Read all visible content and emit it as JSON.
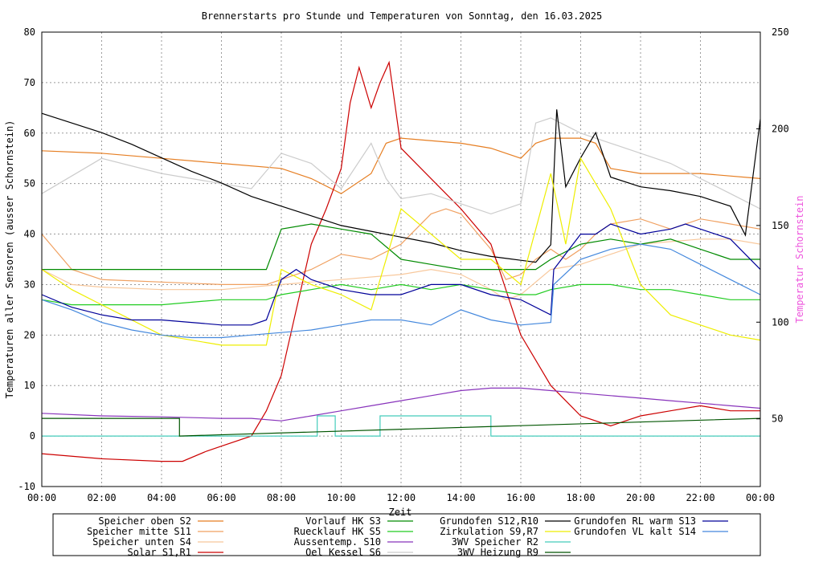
{
  "chart_data": {
    "type": "line",
    "title": "Brennerstarts pro Stunde und Temperaturen von Sonntag, den 16.03.2025",
    "xlabel": "Zeit",
    "ylabel": "Temperaturen aller Sensoren (ausser Schornstein)",
    "y2label": "Temperatur Schornstein",
    "ylim": [
      -10,
      80
    ],
    "y2lim": [
      15,
      250
    ],
    "xlim": [
      0,
      24
    ],
    "grid": true,
    "x_ticks": [
      "00:00",
      "02:00",
      "04:00",
      "06:00",
      "08:00",
      "10:00",
      "12:00",
      "14:00",
      "16:00",
      "18:00",
      "20:00",
      "22:00",
      "00:00"
    ],
    "y_ticks": [
      "-10",
      "0",
      "10",
      "20",
      "30",
      "40",
      "50",
      "60",
      "70",
      "80"
    ],
    "y2_ticks": [
      "50",
      "100",
      "150",
      "200",
      "250"
    ],
    "legend_position": "bottom",
    "legend": [
      {
        "name": "Speicher oben  S2",
        "color": "#e67e22"
      },
      {
        "name": "Speicher mitte S11",
        "color": "#f0a060"
      },
      {
        "name": "Speicher unten S4",
        "color": "#f8c89c"
      },
      {
        "name": "Solar       S1,R1",
        "color": "#cc0000"
      },
      {
        "name": "Vorlauf HK     S3",
        "color": "#008a00"
      },
      {
        "name": "Ruecklauf HK   S5",
        "color": "#22cc22"
      },
      {
        "name": "Aussentemp.   S10",
        "color": "#8833bb"
      },
      {
        "name": "Oel Kessel     S6",
        "color": "#cccccc"
      },
      {
        "name": "Grundofen   S12,R10",
        "color": "#000000"
      },
      {
        "name": "Zirkulation  S9,R7",
        "color": "#eeee00"
      },
      {
        "name": "3WV Speicher    R2",
        "color": "#44ccbb"
      },
      {
        "name": "3WV Heizung   R9",
        "color": "#005500"
      },
      {
        "name": "Grundofen RL warm  S13",
        "color": "#000099"
      },
      {
        "name": "Grundofen VL kalt  S14",
        "color": "#4488dd"
      }
    ],
    "series": [
      {
        "name": "Speicher oben  S2",
        "axis": "y",
        "x": [
          0,
          2,
          4,
          6,
          8,
          9,
          10,
          11,
          11.5,
          12,
          14,
          15,
          16,
          16.5,
          17,
          18,
          18.5,
          19,
          20,
          22,
          24
        ],
        "values": [
          56.5,
          56,
          55,
          54,
          53,
          51,
          48,
          52,
          58,
          59,
          58,
          57,
          55,
          58,
          59,
          59,
          58,
          53,
          52,
          52,
          51
        ]
      },
      {
        "name": "Speicher mitte S11",
        "axis": "y",
        "x": [
          0,
          1,
          2,
          4,
          6,
          7.5,
          8,
          9,
          10,
          11,
          12,
          13,
          13.5,
          14,
          15,
          15.5,
          16,
          16.5,
          17,
          17.5,
          18,
          18.5,
          19,
          20,
          21,
          22,
          23,
          24
        ],
        "values": [
          40,
          33,
          31,
          30.5,
          30,
          30,
          31,
          33,
          36,
          35,
          38,
          44,
          45,
          44,
          37,
          31,
          32,
          35,
          37,
          35,
          37,
          40,
          42,
          43,
          41,
          43,
          42,
          41
        ]
      },
      {
        "name": "Speicher unten S4",
        "axis": "y",
        "x": [
          0,
          1,
          2,
          4,
          6,
          8,
          10,
          12,
          13,
          14,
          15,
          15.5,
          16,
          17,
          18,
          19,
          20,
          22,
          23,
          24
        ],
        "values": [
          33,
          30,
          29.5,
          29,
          29,
          30,
          31,
          32,
          33,
          32,
          29,
          27,
          28,
          33,
          34,
          36,
          38,
          39,
          39,
          38
        ]
      },
      {
        "name": "Solar       S1,R1",
        "axis": "y",
        "x": [
          0,
          2,
          4,
          4.7,
          5.5,
          6,
          7,
          7.5,
          8,
          8.5,
          9,
          9.5,
          10,
          10.3,
          10.6,
          11,
          11.3,
          11.6,
          12,
          13,
          14,
          15,
          16,
          17,
          18,
          19,
          19.5,
          20,
          21,
          22,
          23,
          24
        ],
        "values": [
          -3.5,
          -4.5,
          -5,
          -5,
          -3,
          -2,
          0,
          5,
          12,
          25,
          38,
          45,
          53,
          66,
          73,
          65,
          70,
          74,
          57,
          51,
          45,
          38,
          20,
          10,
          4,
          2,
          3,
          4,
          5,
          6,
          5,
          5
        ]
      },
      {
        "name": "Vorlauf HK     S3",
        "axis": "y",
        "x": [
          0,
          1,
          2,
          3,
          4,
          5,
          6,
          7,
          7.5,
          8,
          9,
          10,
          11,
          12,
          13,
          14,
          15,
          16,
          16.5,
          17,
          18,
          19,
          20,
          21,
          22,
          23,
          24
        ],
        "values": [
          33,
          33,
          33,
          33,
          33,
          33,
          33,
          33,
          33,
          41,
          42,
          41,
          40,
          35,
          34,
          33,
          33,
          33,
          33,
          35,
          38,
          39,
          38,
          39,
          37,
          35,
          35
        ]
      },
      {
        "name": "Ruecklauf HK   S5",
        "axis": "y",
        "x": [
          0,
          1,
          2,
          4,
          6,
          7.5,
          8,
          9,
          10,
          11,
          12,
          13,
          14,
          15,
          16,
          16.5,
          17,
          18,
          19,
          20,
          21,
          22,
          23,
          24
        ],
        "values": [
          27,
          26,
          26,
          26,
          27,
          27,
          28,
          29,
          30,
          29,
          30,
          29,
          30,
          29,
          28,
          28,
          29,
          30,
          30,
          29,
          29,
          28,
          27,
          27
        ]
      },
      {
        "name": "Aussentemp.   S10",
        "axis": "y",
        "x": [
          0,
          2,
          4,
          6,
          7,
          8,
          9,
          10,
          11,
          12,
          13,
          14,
          15,
          16,
          17,
          18,
          19,
          20,
          21,
          22,
          23,
          24
        ],
        "values": [
          4.5,
          4,
          3.8,
          3.5,
          3.5,
          3,
          4,
          5,
          6,
          7,
          8,
          9,
          9.5,
          9.5,
          9,
          8.5,
          8,
          7.5,
          7,
          6.5,
          6,
          5.5
        ]
      },
      {
        "name": "Oel Kessel     S6",
        "axis": "y",
        "x": [
          0,
          2,
          4,
          6,
          7,
          8,
          9,
          10,
          11,
          11.5,
          12,
          13,
          14,
          15,
          16,
          16.5,
          17,
          18,
          19,
          20,
          21,
          22,
          23,
          24
        ],
        "values": [
          48,
          55,
          52,
          50,
          49,
          56,
          54,
          49,
          58,
          51,
          47,
          48,
          46,
          44,
          46,
          62,
          63,
          60,
          58,
          56,
          54,
          51,
          48,
          45
        ]
      },
      {
        "name": "Grundofen   S12,R10",
        "axis": "y2",
        "x": [
          0,
          1,
          2,
          3,
          4,
          5,
          6,
          7,
          8,
          9,
          10,
          11,
          12,
          13,
          14,
          15,
          16,
          16.5,
          17,
          17.2,
          17.5,
          18,
          18.5,
          19,
          20,
          21,
          22,
          23,
          23.5,
          24
        ],
        "values": [
          208,
          203,
          198,
          192,
          185,
          178,
          172,
          165,
          160,
          155,
          150,
          147,
          144,
          141,
          137,
          134,
          132,
          131,
          140,
          210,
          170,
          185,
          198,
          175,
          170,
          168,
          165,
          160,
          145,
          205
        ]
      },
      {
        "name": "Zirkulation  S9,R7",
        "axis": "y",
        "x": [
          0,
          1,
          2,
          4,
          6,
          7.5,
          8,
          9,
          10,
          11,
          12,
          13,
          14,
          15,
          16,
          17,
          17.5,
          18,
          19,
          20,
          21,
          22,
          23,
          24
        ],
        "values": [
          33,
          29,
          26,
          20,
          18,
          18,
          33,
          30,
          28,
          25,
          45,
          40,
          35,
          35,
          30,
          52,
          38,
          55,
          45,
          30,
          24,
          22,
          20,
          19
        ]
      },
      {
        "name": "3WV Speicher    R2",
        "axis": "y",
        "x": [
          0,
          9.2,
          9.2,
          9.8,
          9.8,
          11.3,
          11.3,
          15,
          15,
          24
        ],
        "values": [
          0,
          0,
          4,
          4,
          0,
          0,
          4,
          4,
          0,
          0
        ]
      },
      {
        "name": "3WV Heizung   R9",
        "axis": "y",
        "x": [
          0,
          4.6,
          4.6,
          24
        ],
        "values": [
          3.5,
          3.5,
          0,
          3.5
        ]
      },
      {
        "name": "Grundofen RL warm  S13",
        "axis": "y",
        "x": [
          0,
          1,
          2,
          3,
          4,
          5,
          6,
          7,
          7.5,
          8,
          8.5,
          9,
          10,
          11,
          12,
          13,
          14,
          15,
          16,
          17,
          17.1,
          18,
          18.5,
          19,
          20,
          21,
          21.5,
          22,
          23,
          24
        ],
        "values": [
          28,
          25.5,
          24,
          23,
          23,
          22.5,
          22,
          22,
          23,
          31,
          33,
          31,
          29,
          28,
          28,
          30,
          30,
          28,
          27,
          24,
          33,
          40,
          40,
          42,
          40,
          41,
          42,
          41,
          39,
          33
        ]
      },
      {
        "name": "Grundofen VL kalt  S14",
        "axis": "y",
        "x": [
          0,
          1,
          2,
          3,
          4,
          5,
          6,
          7,
          8,
          9,
          10,
          11,
          12,
          13,
          14,
          15,
          16,
          17,
          17.1,
          18,
          19,
          20,
          21,
          22,
          23,
          24
        ],
        "values": [
          27,
          25,
          22.5,
          21,
          20,
          19.5,
          19.5,
          20,
          20.5,
          21,
          22,
          23,
          23,
          22,
          25,
          23,
          22,
          22.5,
          30,
          35,
          37,
          38,
          37,
          34,
          31,
          28
        ]
      }
    ]
  }
}
